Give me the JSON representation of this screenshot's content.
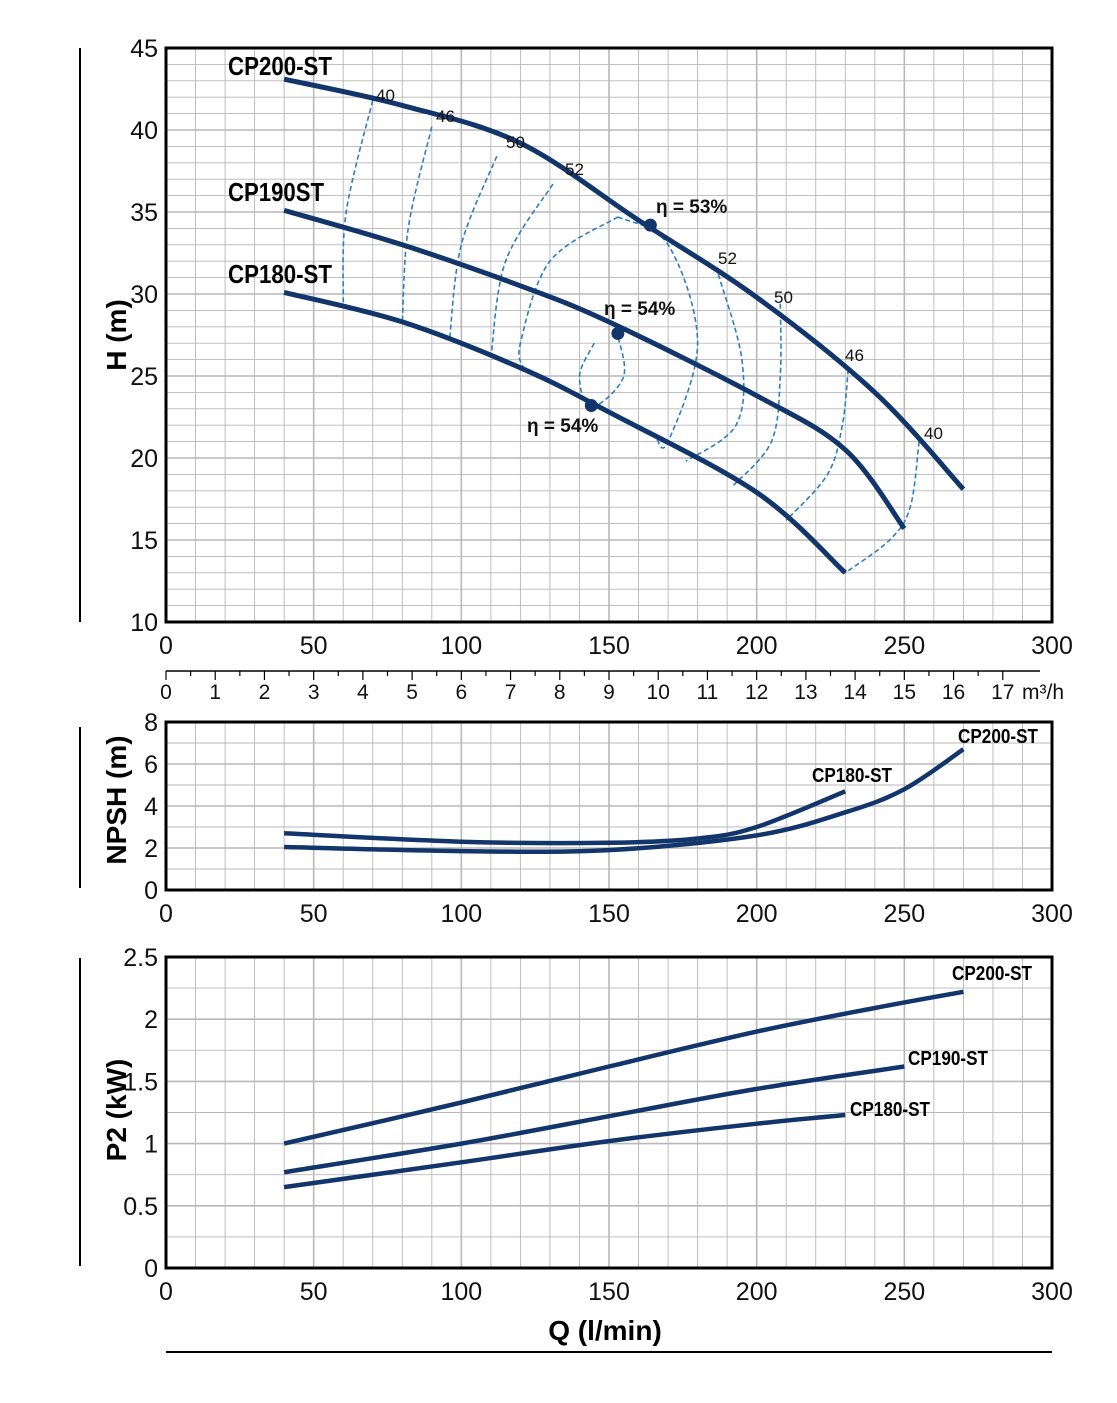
{
  "colors": {
    "curve": "#12366b",
    "iso": "#2a7fc0",
    "grid": "#b8b8b8",
    "frame": "#000000"
  },
  "x_axis": {
    "title": "Q (l/min)",
    "ticks": [
      "0",
      "50",
      "100",
      "150",
      "200",
      "250",
      "300"
    ],
    "secondary_ticks": [
      "0",
      "1",
      "2",
      "3",
      "4",
      "5",
      "6",
      "7",
      "8",
      "9",
      "10",
      "11",
      "12",
      "13",
      "14",
      "15",
      "16",
      "17"
    ],
    "secondary_unit": "m³/h"
  },
  "chart_data": [
    {
      "type": "line",
      "id": "head",
      "ylabel": "H (m)",
      "xlim": [
        0,
        300
      ],
      "ylim": [
        10,
        45
      ],
      "yticks": [
        "10",
        "15",
        "20",
        "25",
        "30",
        "35",
        "40",
        "45"
      ],
      "series": [
        {
          "name": "CP200-ST",
          "points": [
            [
              40,
              43.1
            ],
            [
              80,
              41.5
            ],
            [
              120,
              39.2
            ],
            [
              160,
              34.5
            ],
            [
              200,
              29.8
            ],
            [
              240,
              24.0
            ],
            [
              270,
              18.1
            ]
          ]
        },
        {
          "name": "CP190ST",
          "points": [
            [
              40,
              35.1
            ],
            [
              80,
              33.0
            ],
            [
              120,
              30.5
            ],
            [
              150,
              28.3
            ],
            [
              200,
              23.8
            ],
            [
              230,
              20.5
            ],
            [
              250,
              15.7
            ]
          ]
        },
        {
          "name": "CP180-ST",
          "points": [
            [
              40,
              30.1
            ],
            [
              80,
              28.3
            ],
            [
              120,
              25.5
            ],
            [
              150,
              22.8
            ],
            [
              200,
              17.9
            ],
            [
              230,
              13.0
            ]
          ]
        }
      ],
      "efficiency_curves": [
        {
          "label": "40",
          "points": [
            [
              70,
              41.8
            ],
            [
              61,
              35
            ],
            [
              60,
              29.5
            ]
          ]
        },
        {
          "label": "46",
          "points": [
            [
              90,
              40.2
            ],
            [
              82,
              34
            ],
            [
              80,
              28.2
            ]
          ]
        },
        {
          "label": "50",
          "points": [
            [
              112,
              38.4
            ],
            [
              100,
              33
            ],
            [
              96,
              27.2
            ]
          ]
        },
        {
          "label": "52",
          "points": [
            [
              131,
              36.7
            ],
            [
              115,
              32
            ],
            [
              110,
              26.1
            ]
          ]
        },
        {
          "label": "53",
          "points": [
            [
              153,
              34.7
            ],
            [
              130,
              32
            ],
            [
              120,
              27
            ],
            [
              121,
              25.5
            ]
          ]
        },
        {
          "label": "54",
          "points": [
            [
              145,
              27.0
            ],
            [
              140,
              25.0
            ],
            [
              144,
              23.1
            ],
            [
              155,
              25.0
            ],
            [
              152,
              28.0
            ]
          ]
        },
        {
          "label": "53",
          "points": [
            [
              153,
              34.7
            ],
            [
              170,
              33
            ],
            [
              180,
              27
            ],
            [
              170,
              21
            ],
            [
              166,
              21.2
            ]
          ]
        },
        {
          "label": "52",
          "points": [
            [
              187,
              31.2
            ],
            [
              195,
              26
            ],
            [
              193,
              22
            ],
            [
              176,
              19.8
            ]
          ]
        },
        {
          "label": "50",
          "points": [
            [
              208,
              29.4
            ],
            [
              208,
              25
            ],
            [
              205,
              21
            ],
            [
              192,
              18.3
            ]
          ]
        },
        {
          "label": "46",
          "points": [
            [
              231,
              25.4
            ],
            [
              229,
              22
            ],
            [
              224,
              19
            ],
            [
              210,
              16.2
            ]
          ]
        },
        {
          "label": "40",
          "points": [
            [
              255,
              21.0
            ],
            [
              252,
              17
            ],
            [
              245,
              15
            ],
            [
              230,
              13.0
            ]
          ]
        }
      ],
      "efficiency_labels": [
        "40",
        "46",
        "50",
        "52",
        "52",
        "50",
        "46",
        "40"
      ],
      "best_efficiency_points": [
        {
          "curve": "CP200-ST",
          "q": 164,
          "h": 34.2,
          "label": "η = 53%"
        },
        {
          "curve": "CP190ST",
          "q": 153,
          "h": 27.6,
          "label": "η = 54%"
        },
        {
          "curve": "CP180-ST",
          "q": 144,
          "h": 23.2,
          "label": "η = 54%"
        }
      ]
    },
    {
      "type": "line",
      "id": "npsh",
      "ylabel": "NPSH (m)",
      "xlim": [
        0,
        300
      ],
      "ylim": [
        0,
        8
      ],
      "yticks": [
        "0",
        "2",
        "4",
        "6",
        "8"
      ],
      "series": [
        {
          "name": "CP180-ST",
          "points": [
            [
              40,
              2.7
            ],
            [
              100,
              2.3
            ],
            [
              150,
              2.25
            ],
            [
              180,
              2.45
            ],
            [
              200,
              3.0
            ],
            [
              230,
              4.7
            ]
          ]
        },
        {
          "name": "CP200-ST",
          "points": [
            [
              40,
              2.05
            ],
            [
              100,
              1.85
            ],
            [
              150,
              1.9
            ],
            [
              200,
              2.6
            ],
            [
              230,
              3.7
            ],
            [
              250,
              4.8
            ],
            [
              270,
              6.7
            ]
          ]
        }
      ]
    },
    {
      "type": "line",
      "id": "power",
      "ylabel": "P2 (kW)",
      "xlim": [
        0,
        300
      ],
      "ylim": [
        0,
        2.5
      ],
      "yticks": [
        "0",
        "0.5",
        "1",
        "1.5",
        "2",
        "2.5"
      ],
      "series": [
        {
          "name": "CP200-ST",
          "points": [
            [
              40,
              1.0
            ],
            [
              100,
              1.33
            ],
            [
              150,
              1.62
            ],
            [
              200,
              1.9
            ],
            [
              240,
              2.09
            ],
            [
              270,
              2.22
            ]
          ]
        },
        {
          "name": "CP190-ST",
          "points": [
            [
              40,
              0.77
            ],
            [
              100,
              1.0
            ],
            [
              150,
              1.22
            ],
            [
              200,
              1.44
            ],
            [
              250,
              1.62
            ]
          ]
        },
        {
          "name": "CP180-ST",
          "points": [
            [
              40,
              0.65
            ],
            [
              100,
              0.85
            ],
            [
              150,
              1.02
            ],
            [
              200,
              1.16
            ],
            [
              230,
              1.23
            ]
          ]
        }
      ]
    }
  ]
}
